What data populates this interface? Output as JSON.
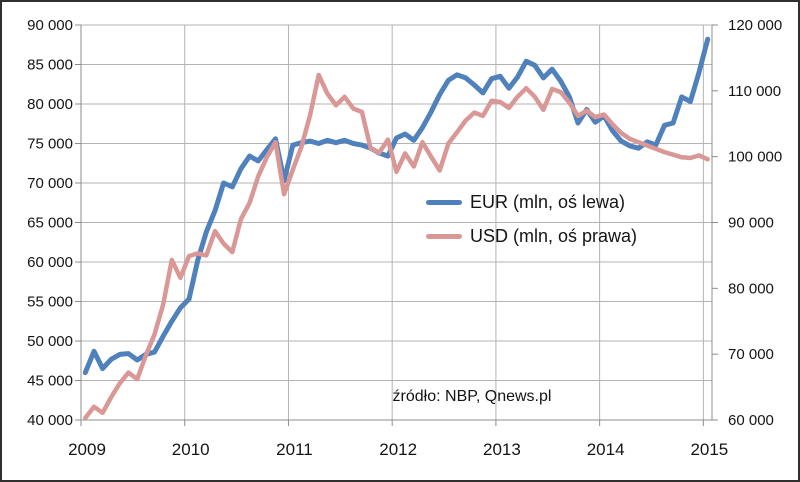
{
  "chart_data": {
    "type": "line",
    "title": "",
    "x_tick_labels": [
      "2009",
      "2010",
      "2011",
      "2012",
      "2013",
      "2014",
      "2015"
    ],
    "points_per_year": 12,
    "y_left": {
      "min": 40000,
      "max": 90000,
      "step": 5000,
      "tick_labels": [
        "40 000",
        "45 000",
        "50 000",
        "55 000",
        "60 000",
        "65 000",
        "70 000",
        "75 000",
        "80 000",
        "85 000",
        "90 000"
      ]
    },
    "y_right": {
      "min": 60000,
      "max": 120000,
      "step": 10000,
      "tick_labels": [
        "60 000",
        "70 000",
        "80 000",
        "90 000",
        "100 000",
        "110 000",
        "120 000"
      ]
    },
    "grid": {
      "horizontal": true,
      "vertical": true,
      "gridline_color": "#B3B3B3",
      "axis_color": "#8C8C8C"
    },
    "legend": {
      "position": "center",
      "transparent_background": true
    },
    "series": [
      {
        "name": "EUR (mln, oś lewa)",
        "axis": "left",
        "color": "#4F81BD",
        "line_width": 5,
        "values": [
          46000,
          48700,
          46500,
          47700,
          48300,
          48400,
          47600,
          48300,
          48600,
          50600,
          52500,
          54200,
          55300,
          60200,
          63800,
          66500,
          70000,
          69500,
          71800,
          73400,
          72800,
          74200,
          75600,
          70300,
          74800,
          75100,
          75300,
          75000,
          75400,
          75100,
          75400,
          75000,
          74800,
          74400,
          73800,
          73400,
          75700,
          76200,
          75400,
          77000,
          79000,
          81200,
          83000,
          83700,
          83300,
          82400,
          81400,
          83200,
          83500,
          82000,
          83400,
          85400,
          84900,
          83300,
          84400,
          82900,
          80900,
          77600,
          79300,
          77700,
          78500,
          76600,
          75300,
          74700,
          74400,
          75200,
          74800,
          77300,
          77600,
          80900,
          80300,
          84000,
          88200
        ]
      },
      {
        "name": "USD (mln, oś prawa)",
        "axis": "right",
        "color": "#D99795",
        "line_width": 4.5,
        "values": [
          60300,
          62000,
          61100,
          63500,
          65600,
          67200,
          66200,
          69800,
          73000,
          77500,
          84300,
          81600,
          84900,
          85300,
          85000,
          88700,
          86800,
          85500,
          90500,
          93000,
          97000,
          99900,
          102200,
          94300,
          98000,
          101500,
          106300,
          112400,
          109600,
          107800,
          109100,
          107300,
          106800,
          101300,
          100600,
          102600,
          97700,
          100500,
          98500,
          102200,
          100000,
          97900,
          102000,
          103700,
          105500,
          106700,
          106200,
          108500,
          108300,
          107400,
          109100,
          110400,
          109100,
          107100,
          110300,
          109800,
          108200,
          106200,
          107000,
          106000,
          106400,
          104900,
          103600,
          102700,
          102200,
          101700,
          101200,
          100700,
          100300,
          99900,
          99800,
          100200,
          99600
        ]
      }
    ],
    "source_note": "źródło: NBP, Qnews.pl"
  }
}
